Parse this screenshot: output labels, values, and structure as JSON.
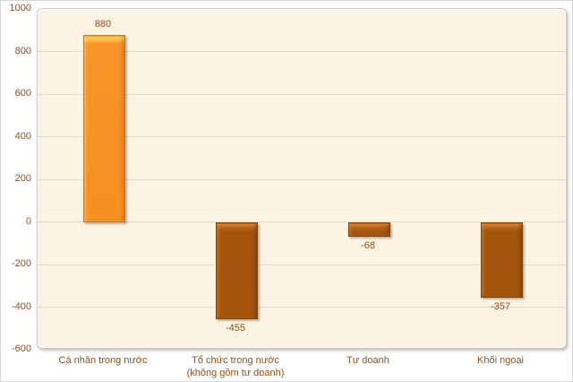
{
  "chart_data": {
    "type": "bar",
    "title": "",
    "xlabel": "",
    "ylabel": "",
    "categories": [
      "Cá nhân trong nước",
      "Tổ chức trong nước\n(không gồm tư doanh)",
      "Tự doanh",
      "Khối ngoại"
    ],
    "values": [
      880,
      -455,
      -68,
      -357
    ],
    "data_labels": [
      "880",
      "-455",
      "-68",
      "-357"
    ],
    "yticks": [
      1000,
      800,
      600,
      400,
      200,
      0,
      -200,
      -400,
      -600
    ],
    "ytick_labels": [
      "1000",
      "800",
      "600",
      "400",
      "200",
      "0",
      "-200",
      "-400",
      "-600"
    ],
    "ylim": [
      -600,
      1000
    ],
    "grid": true,
    "legend": null,
    "colors": {
      "positive_bar": "#F89428",
      "positive_bar_highlight": "#FFC04A",
      "negative_bar": "#A5540E",
      "negative_bar_highlight": "#D28139",
      "bar_border_positive": "#D1770E",
      "bar_border_negative": "#7E3F08",
      "axis_text": "#8C4F1D",
      "gridline": "#DCD9D3",
      "plot_background": "#FDF3E2",
      "plot_border": "#C9C7C3",
      "chart_background": "#FFFFFF"
    }
  }
}
